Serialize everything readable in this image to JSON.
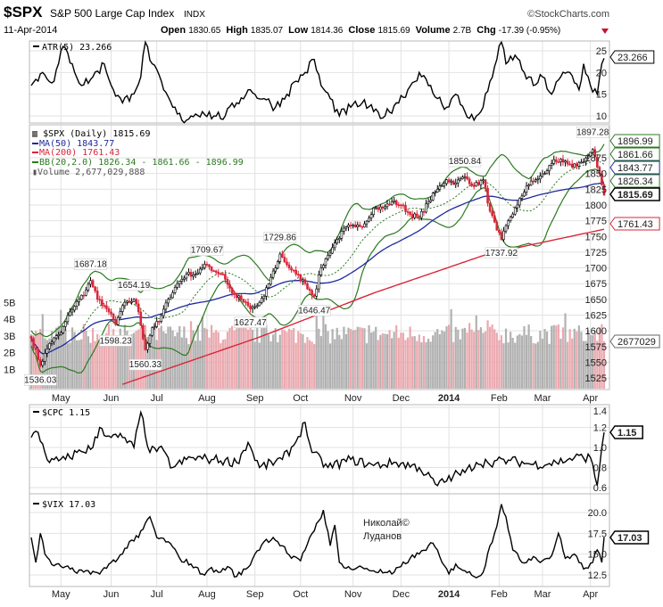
{
  "header": {
    "symbol": "$SPX",
    "name": "S&P 500 Large Cap Index",
    "exchange": "INDX",
    "brand": "©StockCharts.com",
    "date": "11-Apr-2014",
    "open_label": "Open",
    "open": "1830.65",
    "high_label": "High",
    "high": "1835.07",
    "low_label": "Low",
    "low": "1814.36",
    "close_label": "Close",
    "close": "1815.69",
    "volume_label": "Volume",
    "volume": "2.7B",
    "chg_label": "Chg",
    "chg": "-17.39 (-0.95%)",
    "chg_icon": "down-triangle-icon"
  },
  "colors": {
    "up": "#000000",
    "down": "#d8263a",
    "ma50": "#1f2a9c",
    "ma200": "#d8263a",
    "bb": "#2b7a1f",
    "volume_up": "#a9a9a9",
    "volume_down": "#e8a0a6",
    "grid": "#e2e2e2"
  },
  "watermark": {
    "line1": "Николай©",
    "line2": "Луданов"
  },
  "chart_data": [
    {
      "type": "line",
      "panel": "ATR",
      "legend": "ATR(5) 23.266",
      "last_tag": "23.266",
      "y_ticks": [
        25,
        20,
        15,
        10
      ],
      "ylim": [
        8,
        28
      ],
      "anchors": [
        [
          0,
          17
        ],
        [
          5,
          20
        ],
        [
          10,
          18
        ],
        [
          14,
          26
        ],
        [
          18,
          22
        ],
        [
          22,
          17
        ],
        [
          27,
          19
        ],
        [
          32,
          22
        ],
        [
          36,
          16
        ],
        [
          40,
          13
        ],
        [
          44,
          15
        ],
        [
          48,
          19
        ],
        [
          50,
          27
        ],
        [
          53,
          22
        ],
        [
          58,
          16
        ],
        [
          62,
          12
        ],
        [
          66,
          9
        ],
        [
          70,
          10
        ],
        [
          75,
          11
        ],
        [
          80,
          10
        ],
        [
          85,
          10
        ],
        [
          90,
          13
        ],
        [
          95,
          16
        ],
        [
          98,
          15
        ],
        [
          102,
          14
        ],
        [
          107,
          12
        ],
        [
          112,
          15
        ],
        [
          116,
          18
        ],
        [
          120,
          20
        ],
        [
          124,
          23
        ],
        [
          127,
          17
        ],
        [
          131,
          14
        ],
        [
          135,
          10
        ],
        [
          140,
          12
        ],
        [
          145,
          13
        ],
        [
          150,
          11
        ],
        [
          155,
          10
        ],
        [
          160,
          13
        ],
        [
          165,
          16
        ],
        [
          170,
          20
        ],
        [
          174,
          17
        ],
        [
          178,
          14
        ],
        [
          182,
          12
        ],
        [
          186,
          15
        ],
        [
          190,
          11
        ],
        [
          194,
          9
        ],
        [
          198,
          12
        ],
        [
          201,
          18
        ],
        [
          204,
          23
        ],
        [
          206,
          27
        ],
        [
          208,
          22
        ],
        [
          212,
          24
        ],
        [
          216,
          20
        ],
        [
          220,
          17
        ],
        [
          224,
          19
        ],
        [
          228,
          15
        ],
        [
          232,
          19
        ],
        [
          236,
          20
        ],
        [
          240,
          16
        ],
        [
          242,
          22
        ],
        [
          245,
          17
        ],
        [
          248,
          15
        ],
        [
          250,
          22
        ],
        [
          251,
          23.266
        ]
      ]
    },
    {
      "type": "candlestick",
      "panel": "Price",
      "legend": {
        "main": "$SPX (Daily) 1815.69",
        "ma50": "MA(50) 1843.77",
        "ma200": "MA(200) 1761.43",
        "bb": "BB(20,2.0) 1826.34 - 1861.66 - 1896.99",
        "volume": "Volume 2,677,029,888"
      },
      "y_ticks": [
        1875,
        1850,
        1825,
        1800,
        1775,
        1750,
        1725,
        1700,
        1675,
        1650,
        1625,
        1600,
        1575,
        1550,
        1525
      ],
      "volume_ticks": [
        "5B",
        "4B",
        "3B",
        "2B",
        "1B"
      ],
      "ylim": [
        1515,
        1905
      ],
      "tags": [
        {
          "value": "1896.99",
          "series": "bb_upper"
        },
        {
          "value": "1861.66",
          "series": "bb_mid"
        },
        {
          "value": "1843.77",
          "series": "ma50"
        },
        {
          "value": "1826.34",
          "series": "bb_lower"
        },
        {
          "value": "1815.69",
          "series": "close"
        },
        {
          "value": "1761.43",
          "series": "ma200"
        },
        {
          "value": "2677029",
          "series": "volume"
        }
      ],
      "annotations": [
        {
          "day": 4,
          "value": 1536.03,
          "label": "1536.03",
          "pos": "below"
        },
        {
          "day": 26,
          "value": 1687.18,
          "label": "1687.18",
          "pos": "above"
        },
        {
          "day": 37,
          "value": 1598.23,
          "label": "1598.23",
          "pos": "below"
        },
        {
          "day": 45,
          "value": 1654.19,
          "label": "1654.19",
          "pos": "above"
        },
        {
          "day": 50,
          "value": 1560.33,
          "label": "1560.33",
          "pos": "below"
        },
        {
          "day": 77,
          "value": 1709.67,
          "label": "1709.67",
          "pos": "above"
        },
        {
          "day": 96,
          "value": 1627.47,
          "label": "1627.47",
          "pos": "below"
        },
        {
          "day": 109,
          "value": 1729.86,
          "label": "1729.86",
          "pos": "above"
        },
        {
          "day": 124,
          "value": 1646.47,
          "label": "1646.47",
          "pos": "below"
        },
        {
          "day": 190,
          "value": 1850.84,
          "label": "1850.84",
          "pos": "above"
        },
        {
          "day": 206,
          "value": 1737.92,
          "label": "1737.92",
          "pos": "below"
        },
        {
          "day": 246,
          "value": 1897.28,
          "label": "1897.28",
          "pos": "above"
        }
      ],
      "close_anchors": [
        [
          0,
          1588
        ],
        [
          4,
          1545
        ],
        [
          8,
          1580
        ],
        [
          13,
          1597
        ],
        [
          17,
          1630
        ],
        [
          21,
          1650
        ],
        [
          24,
          1665
        ],
        [
          26,
          1680
        ],
        [
          29,
          1650
        ],
        [
          32,
          1640
        ],
        [
          34,
          1630
        ],
        [
          37,
          1610
        ],
        [
          40,
          1640
        ],
        [
          45,
          1650
        ],
        [
          47,
          1630
        ],
        [
          50,
          1570
        ],
        [
          53,
          1605
        ],
        [
          56,
          1615
        ],
        [
          60,
          1650
        ],
        [
          64,
          1675
        ],
        [
          68,
          1690
        ],
        [
          72,
          1690
        ],
        [
          75,
          1700
        ],
        [
          77,
          1705
        ],
        [
          80,
          1695
        ],
        [
          84,
          1690
        ],
        [
          88,
          1660
        ],
        [
          92,
          1650
        ],
        [
          96,
          1635
        ],
        [
          99,
          1640
        ],
        [
          102,
          1655
        ],
        [
          105,
          1685
        ],
        [
          108,
          1710
        ],
        [
          109,
          1722
        ],
        [
          112,
          1705
        ],
        [
          116,
          1690
        ],
        [
          120,
          1675
        ],
        [
          124,
          1655
        ],
        [
          127,
          1700
        ],
        [
          130,
          1720
        ],
        [
          134,
          1745
        ],
        [
          138,
          1765
        ],
        [
          142,
          1765
        ],
        [
          146,
          1770
        ],
        [
          150,
          1795
        ],
        [
          154,
          1795
        ],
        [
          158,
          1805
        ],
        [
          162,
          1800
        ],
        [
          166,
          1785
        ],
        [
          170,
          1780
        ],
        [
          174,
          1805
        ],
        [
          178,
          1825
        ],
        [
          182,
          1840
        ],
        [
          186,
          1835
        ],
        [
          190,
          1845
        ],
        [
          194,
          1830
        ],
        [
          198,
          1840
        ],
        [
          201,
          1790
        ],
        [
          204,
          1760
        ],
        [
          206,
          1745
        ],
        [
          209,
          1775
        ],
        [
          213,
          1800
        ],
        [
          217,
          1830
        ],
        [
          221,
          1840
        ],
        [
          225,
          1850
        ],
        [
          229,
          1872
        ],
        [
          233,
          1868
        ],
        [
          237,
          1860
        ],
        [
          241,
          1868
        ],
        [
          244,
          1878
        ],
        [
          246,
          1888
        ],
        [
          248,
          1860
        ],
        [
          250,
          1832
        ],
        [
          251,
          1815.69
        ]
      ],
      "ma200_anchors": [
        [
          40,
          1515
        ],
        [
          100,
          1590
        ],
        [
          150,
          1660
        ],
        [
          200,
          1722
        ],
        [
          251,
          1761.43
        ]
      ],
      "volume_level_billions": 3.1
    },
    {
      "type": "line",
      "panel": "CPC",
      "legend": "$CPC 1.15",
      "last_tag": "1.15",
      "y_ticks": [
        "1.4",
        "1.2",
        "1.0",
        "0.8",
        "0.6"
      ],
      "ylim": [
        0.55,
        1.45
      ],
      "anchors": [
        [
          0,
          1.1
        ],
        [
          3,
          1.15
        ],
        [
          8,
          0.85
        ],
        [
          15,
          0.88
        ],
        [
          20,
          0.95
        ],
        [
          27,
          1.0
        ],
        [
          30,
          1.2
        ],
        [
          35,
          1.1
        ],
        [
          40,
          1.1
        ],
        [
          45,
          1.0
        ],
        [
          48,
          1.35
        ],
        [
          52,
          0.95
        ],
        [
          56,
          1.0
        ],
        [
          62,
          0.8
        ],
        [
          70,
          0.9
        ],
        [
          80,
          0.88
        ],
        [
          90,
          0.85
        ],
        [
          95,
          1.05
        ],
        [
          100,
          0.8
        ],
        [
          110,
          0.88
        ],
        [
          115,
          1.02
        ],
        [
          120,
          1.25
        ],
        [
          123,
          0.95
        ],
        [
          130,
          0.8
        ],
        [
          140,
          0.88
        ],
        [
          150,
          0.82
        ],
        [
          160,
          0.85
        ],
        [
          170,
          0.8
        ],
        [
          178,
          0.62
        ],
        [
          185,
          0.72
        ],
        [
          190,
          0.75
        ],
        [
          195,
          0.85
        ],
        [
          200,
          0.85
        ],
        [
          210,
          0.87
        ],
        [
          220,
          0.83
        ],
        [
          230,
          0.85
        ],
        [
          238,
          0.9
        ],
        [
          245,
          0.9
        ],
        [
          248,
          0.62
        ],
        [
          250,
          1.0
        ],
        [
          251,
          1.15
        ]
      ]
    },
    {
      "type": "line",
      "panel": "VIX",
      "legend": "$VIX 17.03",
      "last_tag": "17.03",
      "y_ticks": [
        "20.0",
        "17.5",
        "15.0",
        "12.5"
      ],
      "ylim": [
        11.5,
        22.5
      ],
      "anchors": [
        [
          0,
          17
        ],
        [
          2,
          14
        ],
        [
          4,
          17.5
        ],
        [
          6,
          15
        ],
        [
          10,
          13.6
        ],
        [
          15,
          13.5
        ],
        [
          20,
          12.7
        ],
        [
          25,
          13
        ],
        [
          30,
          12.6
        ],
        [
          35,
          14
        ],
        [
          40,
          15
        ],
        [
          43,
          16.5
        ],
        [
          47,
          17
        ],
        [
          52,
          19.5
        ],
        [
          55,
          17
        ],
        [
          60,
          16.5
        ],
        [
          65,
          14.5
        ],
        [
          70,
          13.8
        ],
        [
          75,
          12.6
        ],
        [
          78,
          13.2
        ],
        [
          82,
          12.8
        ],
        [
          86,
          13.5
        ],
        [
          90,
          12.3
        ],
        [
          95,
          13.4
        ],
        [
          98,
          15
        ],
        [
          102,
          16.5
        ],
        [
          106,
          17
        ],
        [
          110,
          16
        ],
        [
          114,
          14.5
        ],
        [
          118,
          14.2
        ],
        [
          122,
          17
        ],
        [
          126,
          19
        ],
        [
          128,
          20.3
        ],
        [
          131,
          16
        ],
        [
          133,
          18.5
        ],
        [
          135,
          14
        ],
        [
          140,
          13.2
        ],
        [
          145,
          13.4
        ],
        [
          150,
          13
        ],
        [
          155,
          12.8
        ],
        [
          158,
          12.6
        ],
        [
          162,
          13.5
        ],
        [
          166,
          14.5
        ],
        [
          170,
          15
        ],
        [
          174,
          16
        ],
        [
          176,
          16.3
        ],
        [
          180,
          14
        ],
        [
          183,
          12.6
        ],
        [
          186,
          13.8
        ],
        [
          190,
          13
        ],
        [
          194,
          12.3
        ],
        [
          198,
          12.8
        ],
        [
          201,
          16
        ],
        [
          203,
          17.5
        ],
        [
          206,
          21
        ],
        [
          208,
          19.5
        ],
        [
          211,
          15.5
        ],
        [
          215,
          14
        ],
        [
          220,
          14.7
        ],
        [
          224,
          14.2
        ],
        [
          228,
          14.8
        ],
        [
          231,
          17.5
        ],
        [
          234,
          14.5
        ],
        [
          238,
          15
        ],
        [
          242,
          13.2
        ],
        [
          246,
          14
        ],
        [
          248,
          15.5
        ],
        [
          250,
          14
        ],
        [
          251,
          17.03
        ]
      ]
    }
  ],
  "x_axis": {
    "days": 252,
    "months": [
      {
        "label": "May",
        "day": 13
      },
      {
        "label": "Jun",
        "day": 35
      },
      {
        "label": "Jul",
        "day": 55
      },
      {
        "label": "Aug",
        "day": 77
      },
      {
        "label": "Sep",
        "day": 98
      },
      {
        "label": "Oct",
        "day": 118
      },
      {
        "label": "Nov",
        "day": 141
      },
      {
        "label": "Dec",
        "day": 162
      },
      {
        "label": "2014",
        "day": 183,
        "bold": true
      },
      {
        "label": "Feb",
        "day": 205
      },
      {
        "label": "Mar",
        "day": 224
      },
      {
        "label": "Apr",
        "day": 245
      }
    ]
  }
}
